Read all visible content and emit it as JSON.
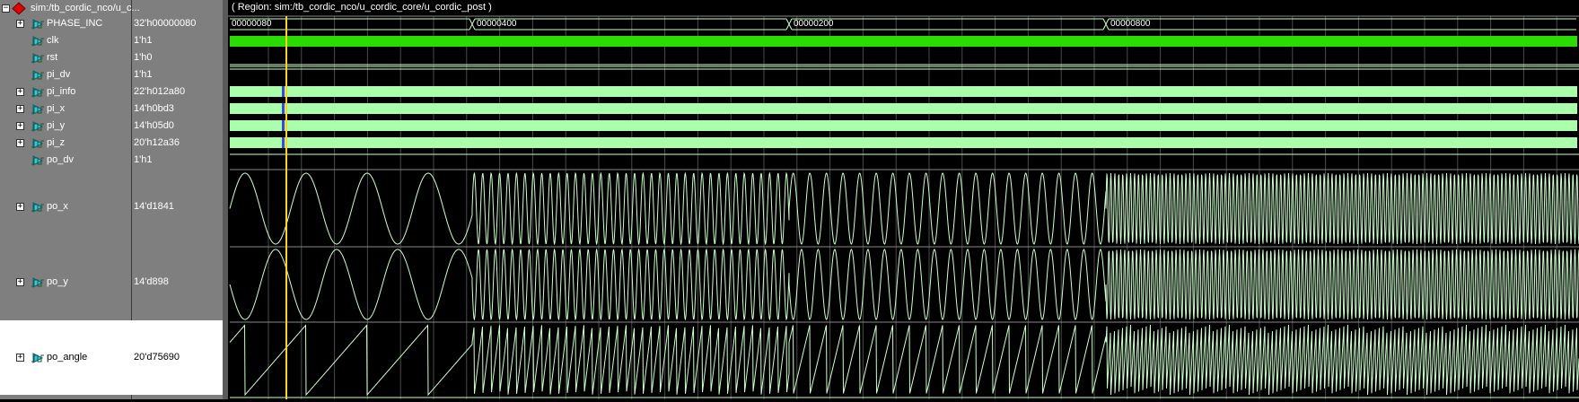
{
  "scope": {
    "label": "sim:/tb_cordic_nco/u_c..."
  },
  "region": {
    "label": "( Region: sim:/tb_cordic_nco/u_cordic_core/u_cordic_post )"
  },
  "signals": [
    {
      "name": "PHASE_INC",
      "value": "32'h00000080",
      "expandable": true
    },
    {
      "name": "clk",
      "value": "1'h1",
      "expandable": false
    },
    {
      "name": "rst",
      "value": "1'h0",
      "expandable": false
    },
    {
      "name": "pi_dv",
      "value": "1'h1",
      "expandable": false
    },
    {
      "name": "pi_info",
      "value": "22'h012a80",
      "expandable": true
    },
    {
      "name": "pi_x",
      "value": "14'h0bd3",
      "expandable": true
    },
    {
      "name": "pi_y",
      "value": "14'h05d0",
      "expandable": true
    },
    {
      "name": "pi_z",
      "value": "20'h12a36",
      "expandable": true
    },
    {
      "name": "po_dv",
      "value": "1'h1",
      "expandable": false
    },
    {
      "name": "po_x",
      "value": "14'd1841",
      "expandable": true
    },
    {
      "name": "po_y",
      "value": "14'd898",
      "expandable": true
    },
    {
      "name": "po_angle",
      "value": "20'd75690",
      "expandable": true
    }
  ],
  "phase_inc_segments": [
    "00000080",
    "00000400",
    "00000200",
    "00000800"
  ],
  "colors": {
    "panel": "#7f7f7f",
    "wave_bus": "#aaffaa",
    "wave_clk": "#2bdc00",
    "wave_line": "#ccffcc",
    "cursor": "#ffd21e",
    "grid": "#4a4a4a"
  },
  "icons": {
    "scope": "red-diamond-icon",
    "signal": "cyan-wave-icon",
    "expand": "plus-box-icon"
  }
}
